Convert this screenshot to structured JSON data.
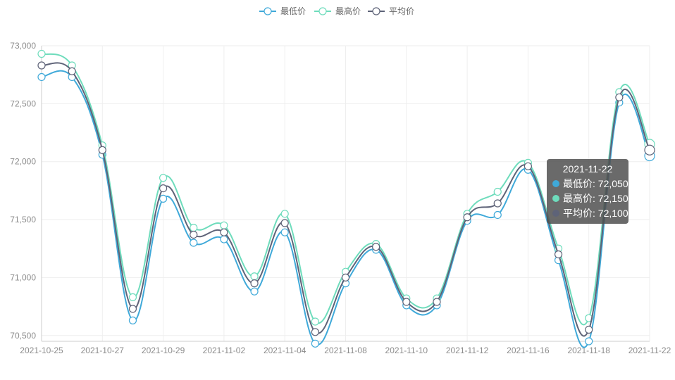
{
  "chart_data": {
    "type": "line",
    "x": [
      "2021-10-25",
      "2021-10-26",
      "2021-10-27",
      "2021-10-28",
      "2021-10-29",
      "2021-11-01",
      "2021-11-02",
      "2021-11-03",
      "2021-11-04",
      "2021-11-05",
      "2021-11-08",
      "2021-11-09",
      "2021-11-10",
      "2021-11-11",
      "2021-11-12",
      "2021-11-15",
      "2021-11-16",
      "2021-11-17",
      "2021-11-18",
      "2021-11-19",
      "2021-11-22"
    ],
    "x_tick_labels": [
      "2021-10-25",
      "2021-10-27",
      "2021-10-29",
      "2021-11-02",
      "2021-11-04",
      "2021-11-08",
      "2021-11-10",
      "2021-11-12",
      "2021-11-16",
      "2021-11-18",
      "2021-11-22"
    ],
    "y_tick_labels": [
      "73,000",
      "72,500",
      "72,000",
      "71,500",
      "71,000",
      "70,500"
    ],
    "ylim": [
      70450,
      73000
    ],
    "grid": true,
    "legend_position": "top-center",
    "series": [
      {
        "name": "最低价",
        "color": "#3fa9d9",
        "values": [
          72730,
          72730,
          72060,
          70630,
          71680,
          71300,
          71330,
          70880,
          71390,
          70430,
          70950,
          71240,
          70760,
          70760,
          71490,
          71540,
          71930,
          71150,
          70450,
          72510,
          72050
        ]
      },
      {
        "name": "最高价",
        "color": "#6edcbc",
        "values": [
          72930,
          72830,
          72140,
          70830,
          71860,
          71430,
          71450,
          71010,
          71550,
          70620,
          71050,
          71290,
          70820,
          70820,
          71550,
          71740,
          71990,
          71250,
          70650,
          72600,
          72150
        ]
      },
      {
        "name": "平均价",
        "color": "#5e6378",
        "values": [
          72830,
          72780,
          72100,
          70730,
          71770,
          71370,
          71390,
          70950,
          71470,
          70530,
          71000,
          71265,
          70790,
          70790,
          71520,
          71640,
          71960,
          71200,
          70550,
          72555,
          72100
        ]
      }
    ]
  },
  "tooltip": {
    "title": "2021-11-22",
    "rows": [
      "最低价: 72,050",
      "最高价: 72,150",
      "平均价: 72,100"
    ],
    "dot_colors": [
      "#3fa9d9",
      "#6edcbc",
      "#5e6378"
    ]
  }
}
